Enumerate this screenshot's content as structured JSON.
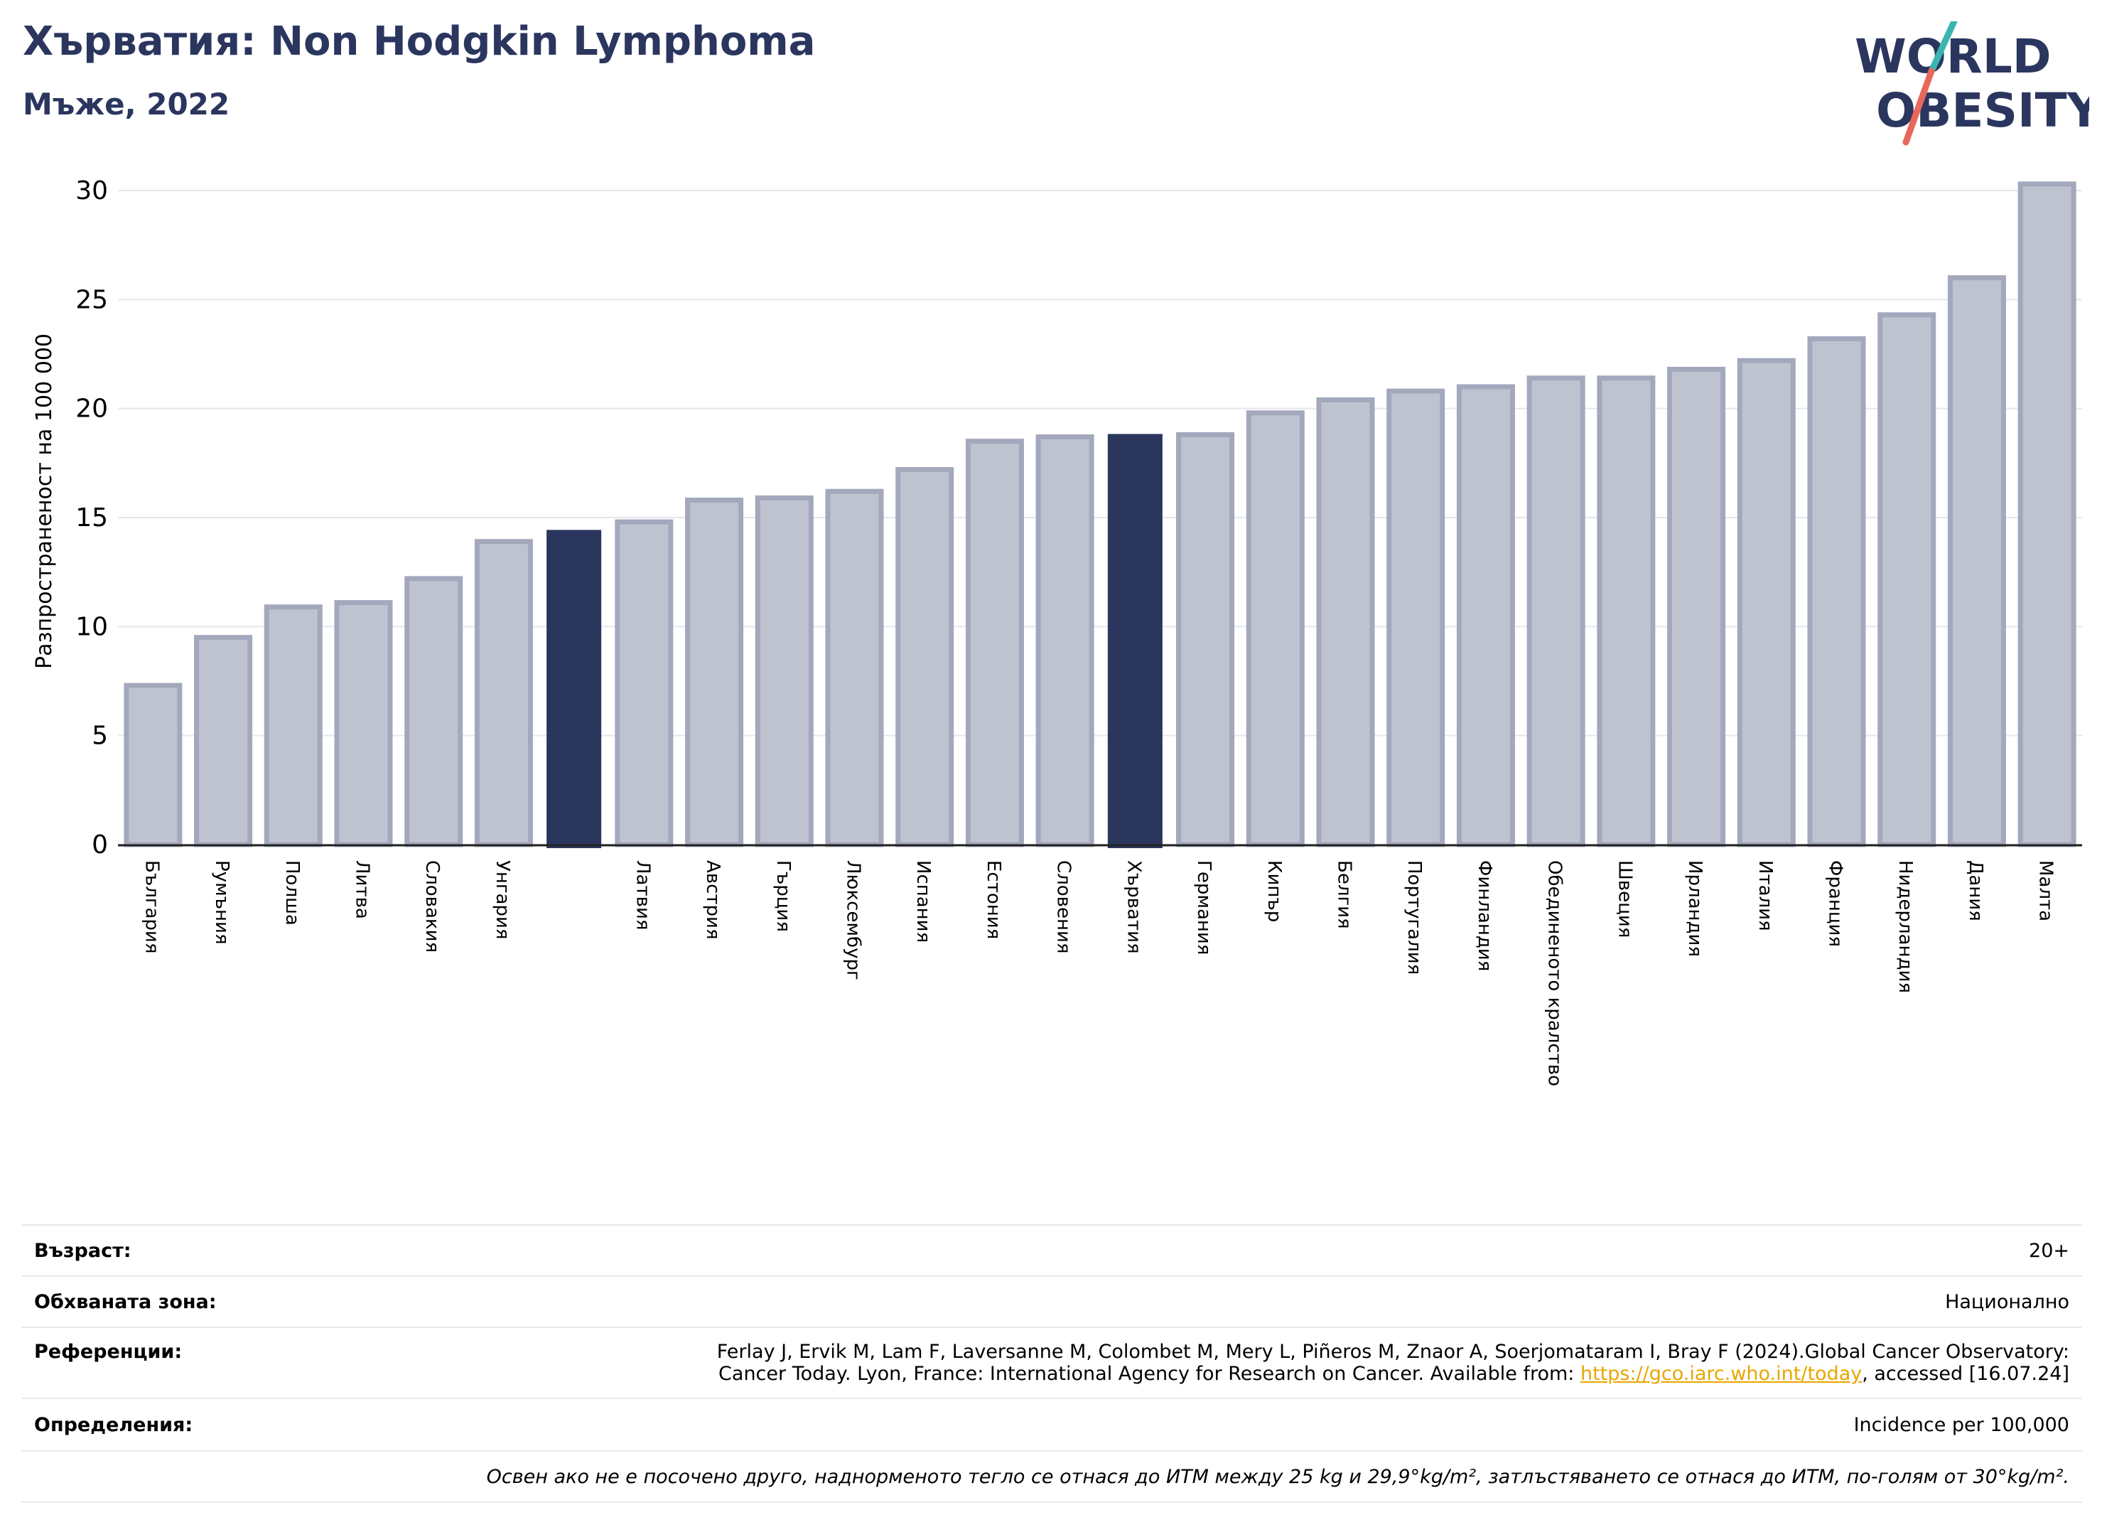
{
  "title": "Хърватия: Non Hodgkin Lymphoma",
  "subtitle": "Мъже, 2022",
  "logo": {
    "line1": "WORLD",
    "line2": "OBESITY"
  },
  "colors": {
    "highlight": "#2b365f",
    "bar_fill": "#bfc3d0",
    "bar_stroke": "#a3a8bc",
    "link": "#e7a700"
  },
  "chart_data": {
    "type": "bar",
    "ylabel": "Разпространеност  на 100 000",
    "ylim": [
      0,
      31
    ],
    "yticks": [
      0,
      5,
      10,
      15,
      20,
      25,
      30
    ],
    "grid": true,
    "categories": [
      "България",
      "Румъния",
      "Полша",
      "Литва",
      "Словакия",
      "Унгария",
      "",
      "Латвия",
      "Австрия",
      "Гърция",
      "Люксембург",
      "Испания",
      "Естония",
      "Словения",
      "Хърватия",
      "Германия",
      "Кипър",
      "Белгия",
      "Португалия",
      "Финландия",
      "Обединеното кралство",
      "Швеция",
      "Ирландия",
      "Италия",
      "Франция",
      "Нидерландия",
      "Дания",
      "Малта"
    ],
    "values": [
      7.3,
      9.5,
      10.9,
      11.1,
      12.2,
      13.9,
      14.4,
      14.8,
      15.8,
      15.9,
      16.2,
      17.2,
      18.5,
      18.7,
      18.8,
      18.8,
      19.8,
      20.4,
      20.8,
      21.0,
      21.4,
      21.4,
      21.8,
      22.2,
      23.2,
      24.3,
      26.0,
      30.3
    ],
    "highlighted": [
      6,
      14
    ]
  },
  "info": {
    "age_label": "Възраст:",
    "age_value": "20+",
    "zone_label": "Обхваната зона:",
    "zone_value": "Национално",
    "ref_label": "Референции:",
    "ref_line1": "Ferlay J, Ervik M, Lam F, Laversanne M, Colombet M, Mery L, Piñeros M, Znaor A, Soerjomataram I, Bray F (2024).Global Cancer Observatory:",
    "ref_line2_pre": "Cancer Today. Lyon, France: International Agency for Research on Cancer. Available from: ",
    "ref_link": "https://gco.iarc.who.int/today",
    "ref_line2_post": ", accessed [16.07.24]",
    "def_label": "Определения:",
    "def_value": "Incidence per 100,000",
    "note": "Освен ако не е посочено друго, наднорменото тегло се отнася до ИТМ между 25 kg и 29,9°kg/m², затлъстяването се отнася до ИТМ, по-голям от 30°kg/m²."
  }
}
